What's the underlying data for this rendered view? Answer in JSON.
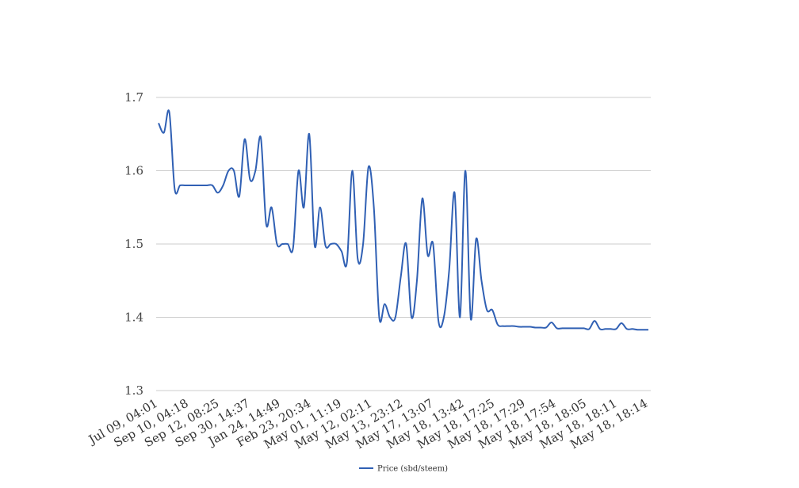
{
  "chart_data": {
    "type": "line",
    "title": "",
    "xlabel": "",
    "ylabel": "",
    "ylim": [
      1.3,
      1.7
    ],
    "yticks": [
      "1.3",
      "1.4",
      "1.5",
      "1.6",
      "1.7"
    ],
    "grid": true,
    "legend_position": "bottom",
    "x_tick_labels": [
      "Jul 09, 04:01",
      "Sep 10, 04:18",
      "Sep 12, 08:25",
      "Sep 30, 14:37",
      "Jan 24, 14:49",
      "Feb 23, 20:34",
      "May 01, 11:19",
      "May 12, 02:11",
      "May 13, 23:12",
      "May 17, 13:07",
      "May 18, 13:42",
      "May 18, 17:25",
      "May 18, 17:29",
      "May 18, 17:54",
      "May 18, 18:05",
      "May 18, 18:11",
      "May 18, 18:14"
    ],
    "series": [
      {
        "name": "Price (sbd/steem)",
        "color": "#3060b4",
        "values": [
          1.665,
          1.652,
          1.68,
          1.575,
          1.58,
          1.58,
          1.58,
          1.58,
          1.58,
          1.58,
          1.58,
          1.57,
          1.58,
          1.6,
          1.6,
          1.565,
          1.643,
          1.588,
          1.6,
          1.645,
          1.527,
          1.55,
          1.5,
          1.5,
          1.5,
          1.495,
          1.6,
          1.55,
          1.65,
          1.498,
          1.55,
          1.498,
          1.5,
          1.5,
          1.49,
          1.475,
          1.6,
          1.48,
          1.5,
          1.605,
          1.55,
          1.4,
          1.418,
          1.4,
          1.4,
          1.455,
          1.5,
          1.4,
          1.45,
          1.562,
          1.485,
          1.5,
          1.395,
          1.4,
          1.465,
          1.57,
          1.4,
          1.6,
          1.398,
          1.507,
          1.45,
          1.41,
          1.41,
          1.39,
          1.388,
          1.388,
          1.388,
          1.387,
          1.387,
          1.387,
          1.386,
          1.386,
          1.386,
          1.393,
          1.385,
          1.385,
          1.385,
          1.385,
          1.385,
          1.385,
          1.384,
          1.395,
          1.384,
          1.384,
          1.384,
          1.384,
          1.392,
          1.384,
          1.384,
          1.383,
          1.383,
          1.383
        ]
      }
    ]
  }
}
